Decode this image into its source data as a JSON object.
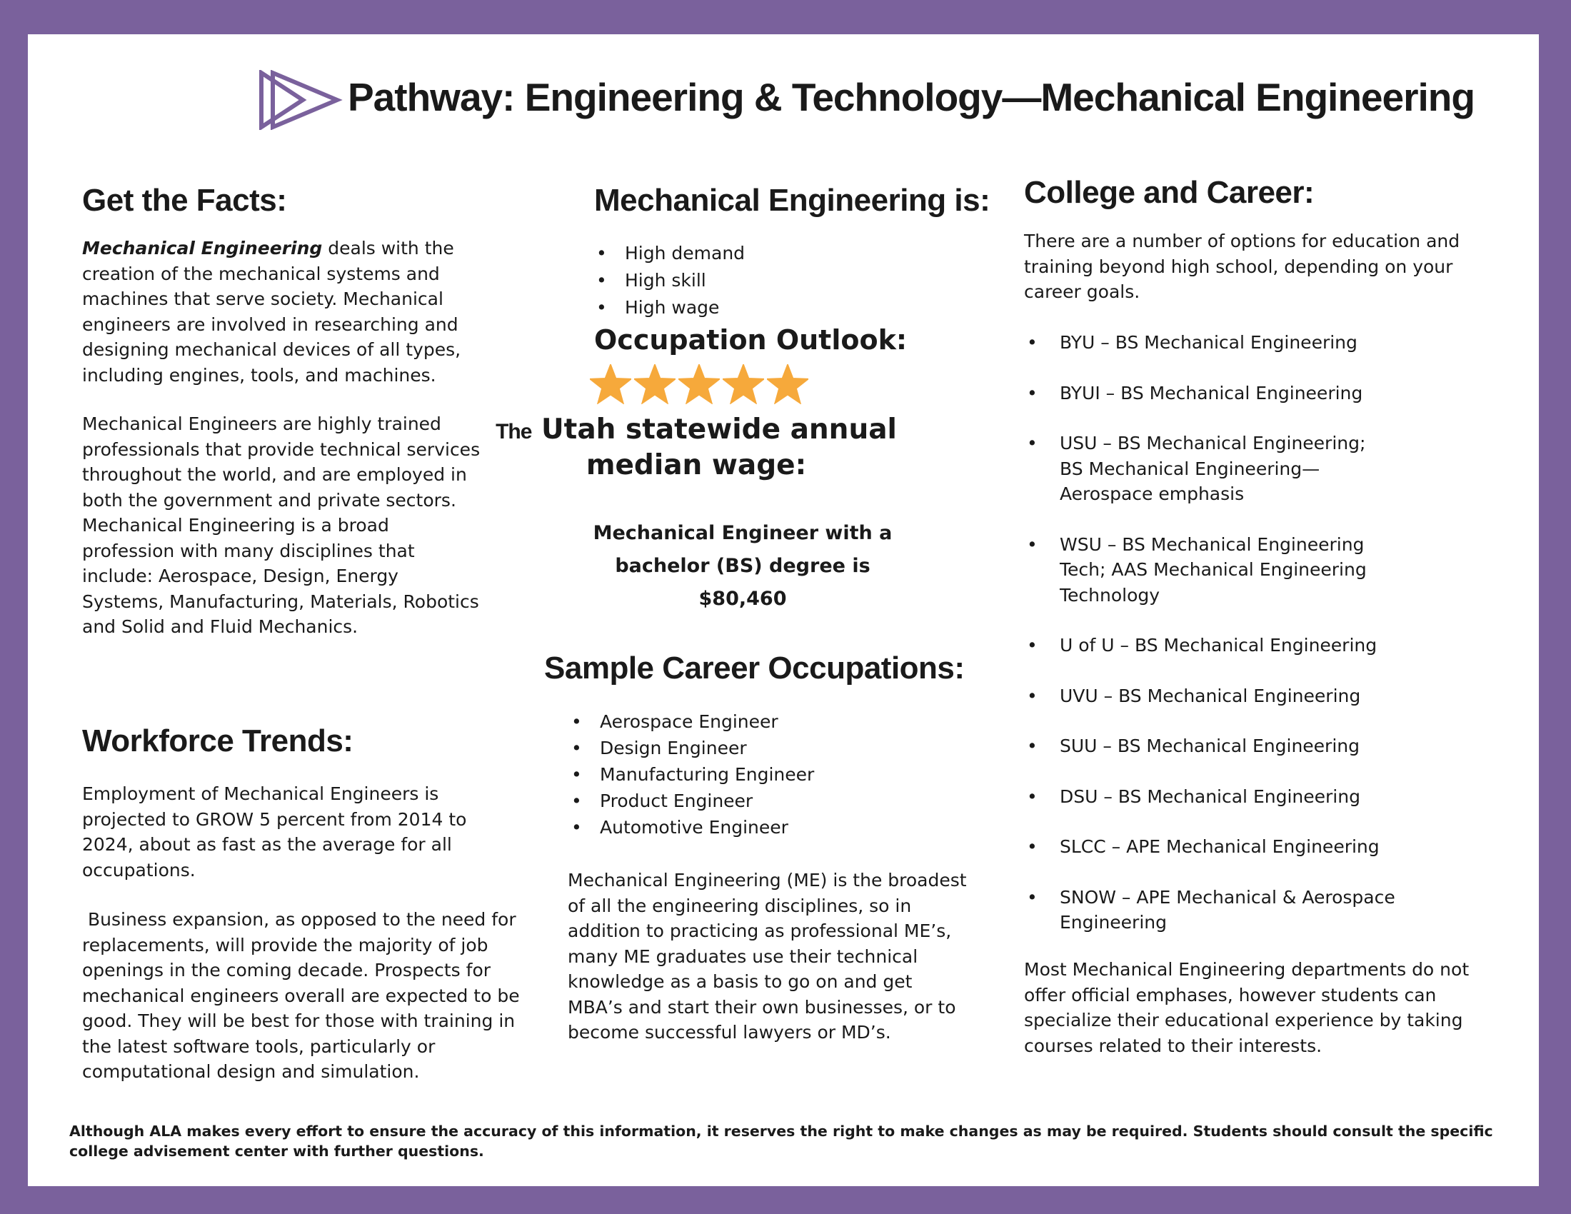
{
  "header": {
    "title": "Pathway: Engineering & Technology—Mechanical Engineering",
    "logo_icon": "double-play-triangle-icon",
    "accent_color": "#7a619c"
  },
  "facts": {
    "heading": "Get the Facts:",
    "lead_term": "Mechanical Engineering",
    "para1_rest": " deals with the creation of the mechanical systems and machines that serve society. Mechanical engineers are involved in researching and designing mechanical devices of all types, including engines, tools, and machines.",
    "para2": "Mechanical Engineers are highly trained professionals that provide technical services throughout the world, and are employed in both the government and private sectors. Mechanical Engineering is a broad profession with many disciplines that include: Aerospace, Design, Energy Systems, Manufacturing, Materials, Robotics and Solid and Fluid Mechanics."
  },
  "workforce": {
    "heading": "Workforce Trends:",
    "para1": "Employment of Mechanical Engineers is projected to GROW 5 percent from 2014 to 2024, about as fast as the average for all occupations.",
    "para2": "Business expansion, as opposed to the need for replacements, will provide the majority of job openings in the coming decade. Prospects for mechanical engineers overall are expected to be good. They will be best for those with training in the latest software tools, particularly or computational design and simulation."
  },
  "me_is": {
    "heading": "Mechanical Engineering is:",
    "items": [
      "High demand",
      "High skill",
      "High wage"
    ]
  },
  "outlook": {
    "heading": "Occupation Outlook:",
    "rating": 5,
    "rating_max": 5,
    "star_color": "#f6a93b"
  },
  "wage": {
    "prefix": "The",
    "heading_line1": "Utah statewide annual",
    "heading_line2": "median wage:",
    "line1": "Mechanical Engineer with a",
    "line2": "bachelor (BS) degree is",
    "amount": "$80,460"
  },
  "occupations": {
    "heading": "Sample Career Occupations:",
    "items": [
      "Aerospace Engineer",
      "Design Engineer",
      "Manufacturing Engineer",
      "Product Engineer",
      "Automotive Engineer"
    ],
    "para": "Mechanical Engineering (ME) is the broadest of all the engineering disciplines, so in addition to practicing as professional ME’s, many ME graduates use their technical knowledge as a basis to go on and get MBA’s and start their own businesses, or to become successful lawyers or MD’s."
  },
  "college": {
    "heading": "College and Career:",
    "intro": "There are a number of options for education and training beyond high school, depending on your career goals.",
    "items": [
      "BYU – BS Mechanical Engineering",
      "BYUI – BS Mechanical Engineering",
      "USU – BS Mechanical Engineering;\nBS Mechanical Engineering—\nAerospace emphasis",
      "WSU – BS Mechanical Engineering\nTech; AAS Mechanical Engineering\nTechnology",
      "U of U – BS Mechanical Engineering",
      "UVU – BS Mechanical Engineering",
      "SUU – BS Mechanical Engineering",
      "DSU – BS Mechanical Engineering",
      "SLCC – APE Mechanical Engineering",
      "SNOW – APE Mechanical & Aerospace\nEngineering"
    ],
    "closing": "Most Mechanical Engineering departments do not offer official emphases, however students can specialize their educational experience by taking courses related to their interests."
  },
  "footer": {
    "disclaimer": "Although ALA makes every effort to ensure the accuracy of this information, it reserves the right to make changes as may be required. Students should consult the specific college advisement center with further questions."
  }
}
